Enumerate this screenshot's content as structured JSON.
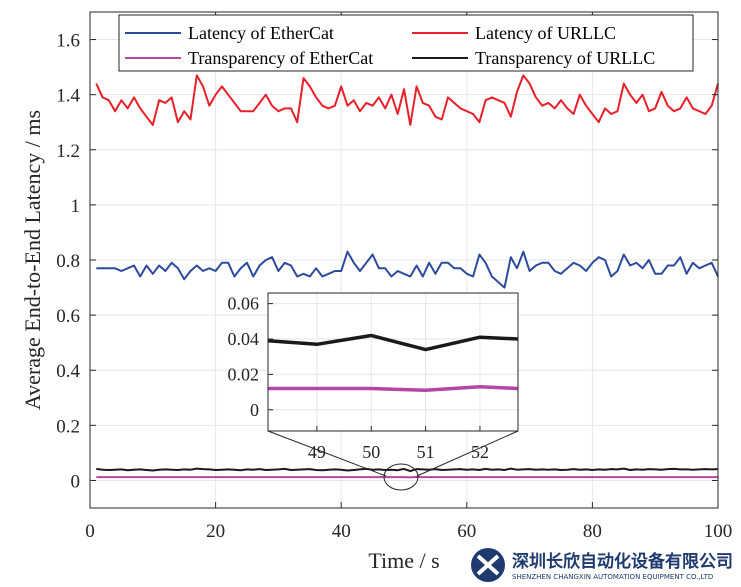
{
  "chart_data": {
    "type": "line",
    "xlabel": "Time / s",
    "ylabel": "Average End-to-End Latency / ms",
    "xlim": [
      0,
      100
    ],
    "ylim": [
      -0.1,
      1.7
    ],
    "xticks": [
      "0",
      "20",
      "40",
      "60",
      "80",
      "100"
    ],
    "yticks": [
      "0",
      "0.2",
      "0.4",
      "0.6",
      "0.8",
      "1",
      "1.2",
      "1.4",
      "1.6"
    ],
    "grid": true,
    "legend_position": "top",
    "legend_entries": [
      "Latency of EtherCat",
      "Latency of URLLC",
      "Transparency of EtherCat",
      "Transparency of URLLC"
    ],
    "x": [
      1,
      2,
      3,
      4,
      5,
      6,
      7,
      8,
      9,
      10,
      11,
      12,
      13,
      14,
      15,
      16,
      17,
      18,
      19,
      20,
      21,
      22,
      23,
      24,
      25,
      26,
      27,
      28,
      29,
      30,
      31,
      32,
      33,
      34,
      35,
      36,
      37,
      38,
      39,
      40,
      41,
      42,
      43,
      44,
      45,
      46,
      47,
      48,
      49,
      50,
      51,
      52,
      53,
      54,
      55,
      56,
      57,
      58,
      59,
      60,
      61,
      62,
      63,
      64,
      65,
      66,
      67,
      68,
      69,
      70,
      71,
      72,
      73,
      74,
      75,
      76,
      77,
      78,
      79,
      80,
      81,
      82,
      83,
      84,
      85,
      86,
      87,
      88,
      89,
      90,
      91,
      92,
      93,
      94,
      95,
      96,
      97,
      98,
      99,
      100
    ],
    "series": [
      {
        "name": "Latency of EtherCat",
        "color": "#2e4a9e",
        "values": [
          0.77,
          0.77,
          0.77,
          0.77,
          0.76,
          0.77,
          0.78,
          0.74,
          0.78,
          0.75,
          0.78,
          0.76,
          0.79,
          0.77,
          0.73,
          0.76,
          0.78,
          0.76,
          0.77,
          0.76,
          0.79,
          0.79,
          0.74,
          0.77,
          0.79,
          0.74,
          0.78,
          0.8,
          0.81,
          0.76,
          0.79,
          0.78,
          0.74,
          0.75,
          0.74,
          0.77,
          0.74,
          0.75,
          0.76,
          0.76,
          0.83,
          0.79,
          0.76,
          0.79,
          0.82,
          0.77,
          0.77,
          0.74,
          0.76,
          0.75,
          0.74,
          0.78,
          0.74,
          0.79,
          0.75,
          0.79,
          0.79,
          0.77,
          0.77,
          0.75,
          0.74,
          0.82,
          0.79,
          0.74,
          0.72,
          0.7,
          0.81,
          0.77,
          0.83,
          0.76,
          0.78,
          0.79,
          0.79,
          0.76,
          0.75,
          0.77,
          0.79,
          0.78,
          0.76,
          0.79,
          0.81,
          0.8,
          0.74,
          0.76,
          0.82,
          0.78,
          0.79,
          0.77,
          0.8,
          0.75,
          0.75,
          0.78,
          0.78,
          0.81,
          0.75,
          0.79,
          0.77,
          0.78,
          0.79,
          0.74
        ]
      },
      {
        "name": "Latency of URLLC",
        "color": "#e8202a",
        "values": [
          1.44,
          1.39,
          1.38,
          1.34,
          1.38,
          1.35,
          1.39,
          1.35,
          1.32,
          1.29,
          1.38,
          1.37,
          1.39,
          1.3,
          1.34,
          1.31,
          1.47,
          1.43,
          1.36,
          1.4,
          1.43,
          1.4,
          1.37,
          1.34,
          1.34,
          1.34,
          1.37,
          1.4,
          1.36,
          1.34,
          1.35,
          1.35,
          1.3,
          1.46,
          1.43,
          1.39,
          1.36,
          1.35,
          1.36,
          1.43,
          1.36,
          1.38,
          1.34,
          1.37,
          1.36,
          1.39,
          1.35,
          1.4,
          1.33,
          1.42,
          1.29,
          1.43,
          1.37,
          1.36,
          1.32,
          1.31,
          1.39,
          1.37,
          1.35,
          1.34,
          1.33,
          1.3,
          1.38,
          1.39,
          1.38,
          1.37,
          1.32,
          1.41,
          1.47,
          1.44,
          1.39,
          1.36,
          1.37,
          1.35,
          1.38,
          1.35,
          1.33,
          1.4,
          1.36,
          1.33,
          1.3,
          1.35,
          1.33,
          1.34,
          1.44,
          1.4,
          1.37,
          1.4,
          1.34,
          1.35,
          1.41,
          1.36,
          1.34,
          1.35,
          1.39,
          1.35,
          1.34,
          1.33,
          1.36,
          1.44
        ]
      },
      {
        "name": "Transparency of EtherCat",
        "color": "#b545a6",
        "values": [
          0.012,
          0.012,
          0.012,
          0.012,
          0.012,
          0.012,
          0.012,
          0.012,
          0.012,
          0.012,
          0.012,
          0.012,
          0.012,
          0.012,
          0.012,
          0.012,
          0.012,
          0.012,
          0.012,
          0.012,
          0.012,
          0.012,
          0.012,
          0.012,
          0.012,
          0.012,
          0.012,
          0.012,
          0.012,
          0.012,
          0.012,
          0.012,
          0.012,
          0.012,
          0.012,
          0.012,
          0.012,
          0.012,
          0.012,
          0.012,
          0.012,
          0.012,
          0.012,
          0.012,
          0.012,
          0.012,
          0.012,
          0.012,
          0.012,
          0.012,
          0.011,
          0.013,
          0.012,
          0.012,
          0.012,
          0.012,
          0.012,
          0.012,
          0.012,
          0.012,
          0.012,
          0.012,
          0.012,
          0.012,
          0.012,
          0.012,
          0.012,
          0.012,
          0.012,
          0.012,
          0.012,
          0.012,
          0.012,
          0.012,
          0.012,
          0.012,
          0.012,
          0.012,
          0.012,
          0.012,
          0.012,
          0.012,
          0.012,
          0.012,
          0.012,
          0.012,
          0.012,
          0.012,
          0.012,
          0.012,
          0.012,
          0.012,
          0.012,
          0.012,
          0.012,
          0.012,
          0.012,
          0.012,
          0.012,
          0.012
        ]
      },
      {
        "name": "Transparency of URLLC",
        "color": "#1a1a1a",
        "values": [
          0.042,
          0.039,
          0.038,
          0.039,
          0.04,
          0.037,
          0.039,
          0.04,
          0.038,
          0.036,
          0.039,
          0.04,
          0.039,
          0.038,
          0.04,
          0.039,
          0.043,
          0.041,
          0.04,
          0.038,
          0.039,
          0.04,
          0.039,
          0.037,
          0.04,
          0.039,
          0.041,
          0.038,
          0.039,
          0.04,
          0.042,
          0.038,
          0.039,
          0.04,
          0.041,
          0.038,
          0.037,
          0.039,
          0.04,
          0.039,
          0.036,
          0.038,
          0.04,
          0.042,
          0.039,
          0.04,
          0.038,
          0.039,
          0.037,
          0.042,
          0.034,
          0.041,
          0.04,
          0.039,
          0.041,
          0.038,
          0.039,
          0.04,
          0.041,
          0.039,
          0.04,
          0.038,
          0.042,
          0.039,
          0.04,
          0.038,
          0.043,
          0.039,
          0.04,
          0.041,
          0.039,
          0.04,
          0.039,
          0.04,
          0.038,
          0.039,
          0.041,
          0.039,
          0.04,
          0.038,
          0.04,
          0.039,
          0.041,
          0.04,
          0.043,
          0.038,
          0.04,
          0.039,
          0.041,
          0.04,
          0.039,
          0.041,
          0.042,
          0.04,
          0.04,
          0.039,
          0.04,
          0.041,
          0.04,
          0.041
        ]
      }
    ],
    "inset": {
      "xlim": [
        48.1,
        52.7
      ],
      "ylim": [
        -0.012,
        0.066
      ],
      "xticks": [
        "49",
        "50",
        "51",
        "52"
      ],
      "yticks": [
        "0",
        "0.02",
        "0.04",
        "0.06"
      ]
    }
  },
  "watermark": {
    "name_cn": "深圳长欣自动化设备有限公司",
    "name_en": "SHENZHEN CHANGXIN AUTOMATION EQUIPMENT CO.,LTD"
  }
}
